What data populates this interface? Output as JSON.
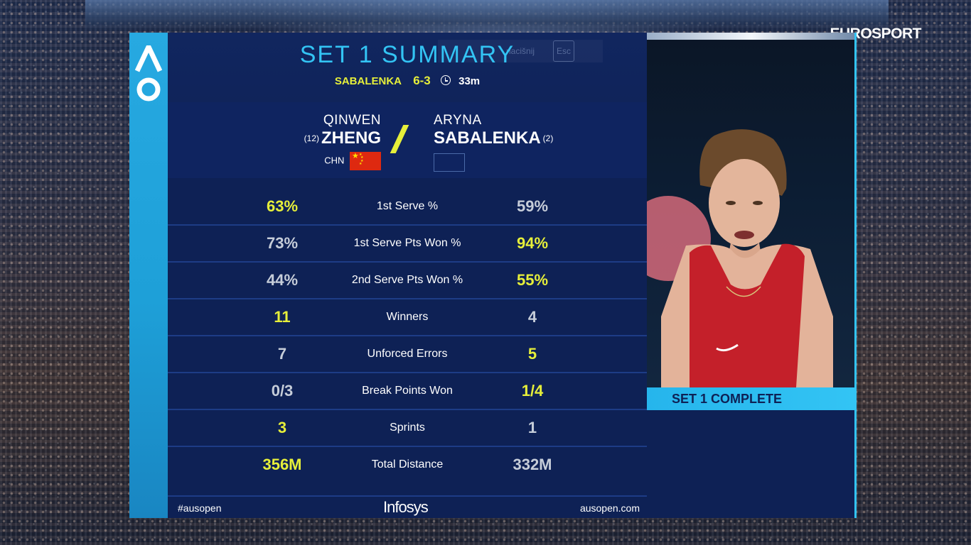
{
  "broadcaster": {
    "logo_text": "EUROSPORT"
  },
  "overlay": {
    "partial_text": "nacišnij",
    "esc_key": "Esc"
  },
  "header": {
    "title": "SET 1 SUMMARY",
    "set_winner": "SABALENKA",
    "score": "6-3",
    "duration": "33m"
  },
  "players": {
    "left": {
      "first": "QINWEN",
      "last": "ZHENG",
      "seed": "(12)",
      "country": "CHN",
      "flag": "china-flag"
    },
    "right": {
      "first": "ARYNA",
      "last": "SABALENKA",
      "seed": "(2)",
      "country": "",
      "flag": "neutral-flag"
    }
  },
  "stats": [
    {
      "label": "1st Serve %",
      "left": "63%",
      "right": "59%",
      "leader": "left"
    },
    {
      "label": "1st Serve Pts Won %",
      "left": "73%",
      "right": "94%",
      "leader": "right"
    },
    {
      "label": "2nd Serve Pts Won %",
      "left": "44%",
      "right": "55%",
      "leader": "right"
    },
    {
      "label": "Winners",
      "left": "11",
      "right": "4",
      "leader": "left"
    },
    {
      "label": "Unforced Errors",
      "left": "7",
      "right": "5",
      "leader": "right"
    },
    {
      "label": "Break Points Won",
      "left": "0/3",
      "right": "1/4",
      "leader": "right"
    },
    {
      "label": "Sprints",
      "left": "3",
      "right": "1",
      "leader": "left"
    },
    {
      "label": "Total Distance",
      "left": "356M",
      "right": "332M",
      "leader": "left"
    }
  ],
  "footer": {
    "hashtag": "#ausopen",
    "sponsor": "Infosys",
    "site": "ausopen.com"
  },
  "video": {
    "banner": "SET 1 COMPLETE"
  },
  "colors": {
    "accent_cyan": "#33c4f4",
    "highlight_yellow": "#e6ef3a",
    "panel_navy": "#0e2155"
  }
}
